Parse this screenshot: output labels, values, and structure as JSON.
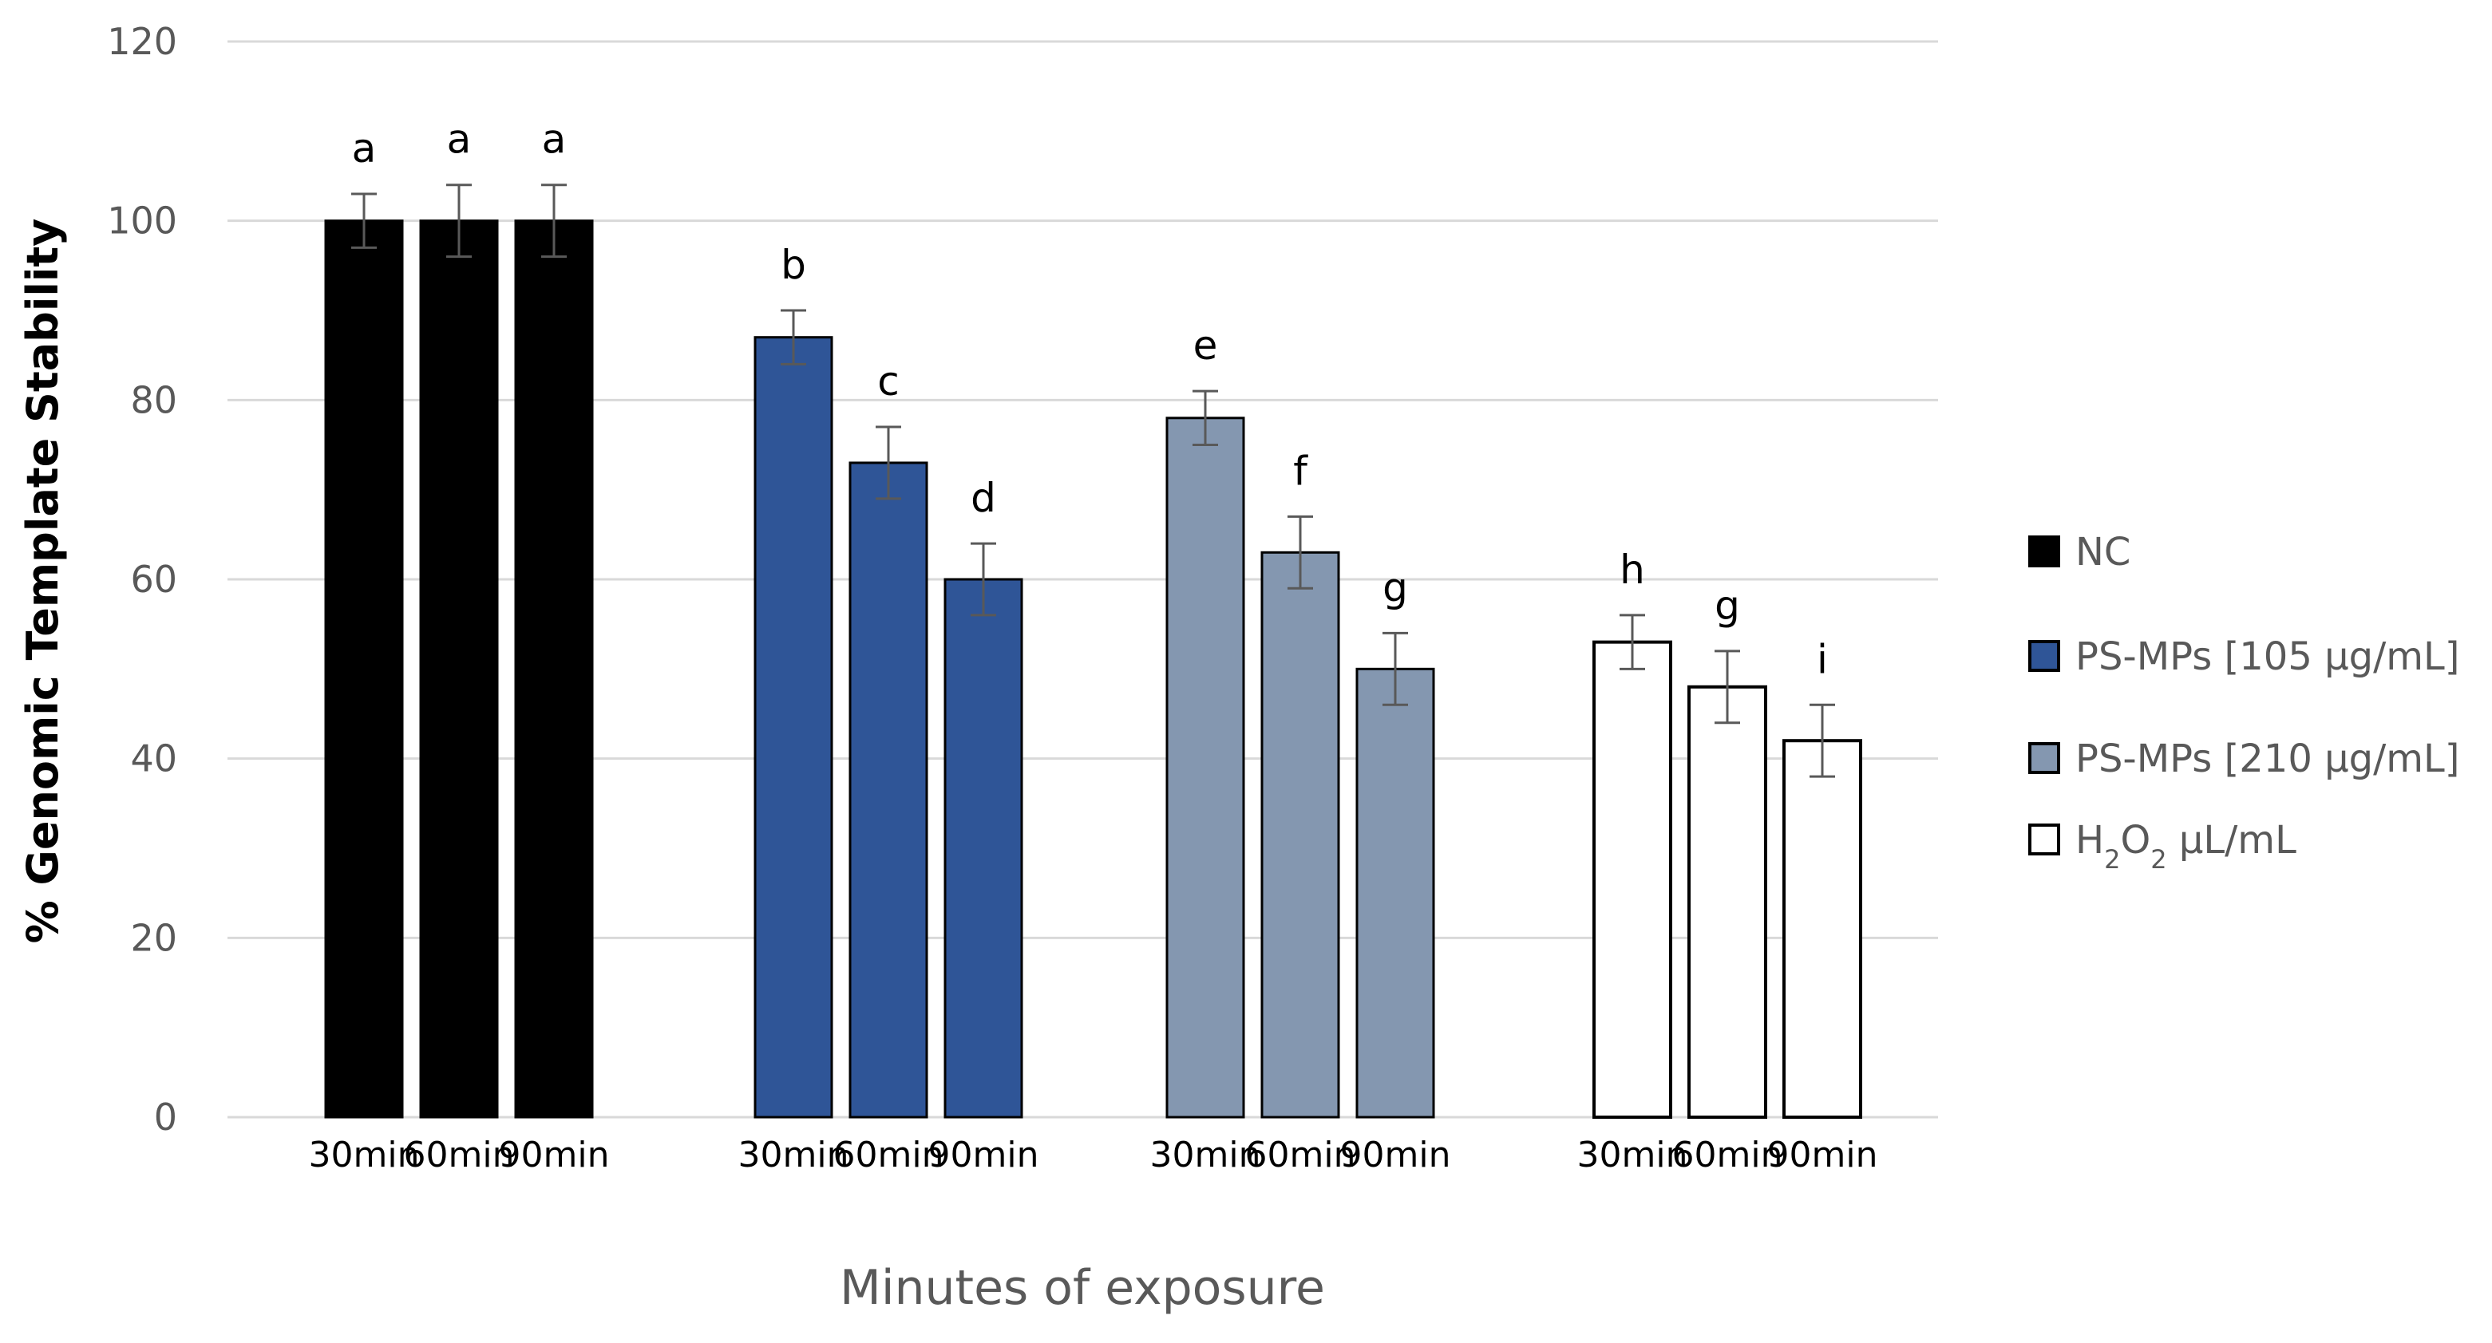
{
  "chart_data": {
    "type": "bar",
    "title": "",
    "xlabel": "Minutes of exposure",
    "ylabel": "% Genomic Template Stability",
    "ylim": [
      0,
      120
    ],
    "yticks": [
      0,
      20,
      40,
      60,
      80,
      100,
      120
    ],
    "grid": true,
    "legend_position": "right",
    "categories": [
      "30min",
      "60min",
      "90min"
    ],
    "series": [
      {
        "name": "NC",
        "color": "#000000",
        "values": [
          100,
          100,
          100
        ],
        "errors": [
          3,
          4,
          4
        ],
        "labels": [
          "a",
          "a",
          "a"
        ]
      },
      {
        "name": "PS-MPs [105 μg/mL]",
        "color": "#2f5597",
        "values": [
          87,
          73,
          60
        ],
        "errors": [
          3,
          4,
          4
        ],
        "labels": [
          "b",
          "c",
          "d"
        ]
      },
      {
        "name": "PS-MPs [210 μg/mL]",
        "color": "#8497b0",
        "values": [
          78,
          63,
          50
        ],
        "errors": [
          3,
          4,
          4
        ],
        "labels": [
          "e",
          "f",
          "g"
        ]
      },
      {
        "name": "H2O2 μL/mL",
        "name_parts": [
          {
            "text": "H",
            "sub": false
          },
          {
            "text": "2",
            "sub": true
          },
          {
            "text": "O",
            "sub": false
          },
          {
            "text": "2",
            "sub": true
          },
          {
            "text": " μL/mL",
            "sub": false
          }
        ],
        "color": "#ffffff",
        "values": [
          53,
          48,
          42
        ],
        "errors": [
          3,
          4,
          4
        ],
        "labels": [
          "h",
          "g",
          "i"
        ]
      }
    ]
  }
}
